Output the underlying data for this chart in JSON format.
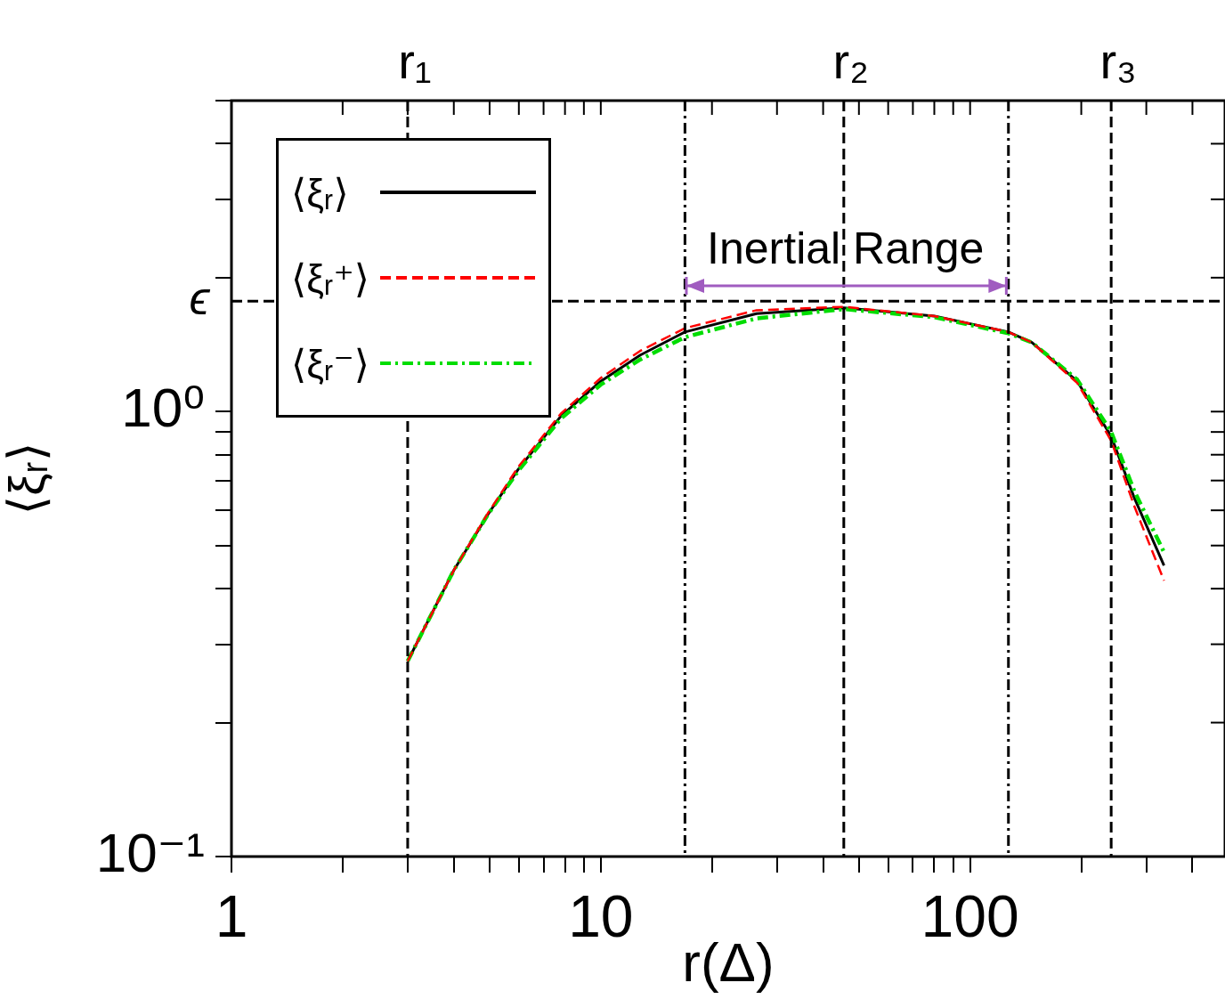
{
  "chart_data": {
    "type": "line",
    "xlabel": "r(Δ)",
    "ylabel": "⟨ξᵣ⟩",
    "log": "xy",
    "legend": "top left",
    "xlim": [
      1,
      490
    ],
    "ylim": [
      0.1,
      5
    ],
    "xticks": [
      1,
      {
        "value": 2,
        "label": null
      },
      {
        "value": 3,
        "label": null
      },
      {
        "value": 4,
        "label": null
      },
      {
        "value": 5,
        "label": null
      },
      {
        "value": 6,
        "label": null
      },
      {
        "value": 7,
        "label": null
      },
      {
        "value": 8,
        "label": null
      },
      {
        "value": 9,
        "label": null
      },
      10,
      {
        "value": 20,
        "label": null
      },
      {
        "value": 30,
        "label": null
      },
      {
        "value": 40,
        "label": null
      },
      {
        "value": 50,
        "label": null
      },
      {
        "value": 60,
        "label": null
      },
      {
        "value": 70,
        "label": null
      },
      {
        "value": 80,
        "label": null
      },
      {
        "value": 90,
        "label": null
      },
      100,
      {
        "value": 200,
        "label": null
      },
      {
        "value": 300,
        "label": null
      },
      {
        "value": 400,
        "label": null
      }
    ],
    "yticks": [
      {
        "value": 0.1,
        "label": "10⁻¹"
      },
      {
        "value": 0.2,
        "label": null
      },
      {
        "value": 0.3,
        "label": null
      },
      {
        "value": 0.4,
        "label": null
      },
      {
        "value": 0.5,
        "label": null
      },
      {
        "value": 0.6,
        "label": null
      },
      {
        "value": 0.7,
        "label": null
      },
      {
        "value": 0.8,
        "label": null
      },
      {
        "value": 0.9,
        "label": null
      },
      {
        "value": 1,
        "label": "10⁰"
      },
      {
        "value": 2,
        "label": null
      },
      {
        "value": 3,
        "label": null
      },
      {
        "value": 4,
        "label": null
      },
      {
        "value": 5,
        "label": null
      }
    ],
    "x": [
      3,
      4,
      4.94,
      5.97,
      7.8,
      10,
      12.8,
      16.9,
      26.4,
      45.5,
      80,
      127,
      147,
      195,
      241,
      279,
      335
    ],
    "series": [
      {
        "name": "⟨ξᵣ⟩",
        "color": "#000000",
        "line_style": "solid",
        "values": [
          0.275,
          0.44,
          0.586,
          0.741,
          0.977,
          1.17,
          1.34,
          1.51,
          1.66,
          1.71,
          1.64,
          1.51,
          1.43,
          1.17,
          0.88,
          0.637,
          0.451
        ]
      },
      {
        "name": "⟨ξᵣ⁺⟩",
        "color": "#ff0000",
        "line_style": "dashed",
        "values": [
          0.275,
          0.44,
          0.59,
          0.75,
          0.99,
          1.19,
          1.37,
          1.54,
          1.69,
          1.72,
          1.64,
          1.51,
          1.43,
          1.16,
          0.86,
          0.61,
          0.417
        ]
      },
      {
        "name": "⟨ξᵣ⁻⟩",
        "color": "#00dd00",
        "line_style": "dashdot",
        "values": [
          0.275,
          0.44,
          0.586,
          0.735,
          0.965,
          1.15,
          1.31,
          1.47,
          1.62,
          1.7,
          1.63,
          1.5,
          1.43,
          1.18,
          0.9,
          0.66,
          0.483
        ]
      }
    ],
    "ref_lines": [
      {
        "axis": "x",
        "value": 3,
        "label": "r₁",
        "color": "#000000",
        "line_style": "dashed"
      },
      {
        "axis": "x",
        "value": 45.5,
        "label": "r₂",
        "color": "#000000",
        "line_style": "dashed"
      },
      {
        "axis": "x",
        "value": 241,
        "label": "r₃",
        "color": "#000000",
        "line_style": "dashed"
      },
      {
        "axis": "y",
        "value": 1.77,
        "label": "ϵ",
        "color": "#000000",
        "line_style": "dashed"
      },
      {
        "axis": "x",
        "value": 16.9,
        "color": "#000000",
        "line_style": "dashdot"
      },
      {
        "axis": "x",
        "value": 127,
        "color": "#000000",
        "line_style": "dashdot"
      }
    ],
    "annotations": [
      {
        "text": "Inertial Range",
        "x": 46,
        "y": 1.92
      }
    ]
  }
}
